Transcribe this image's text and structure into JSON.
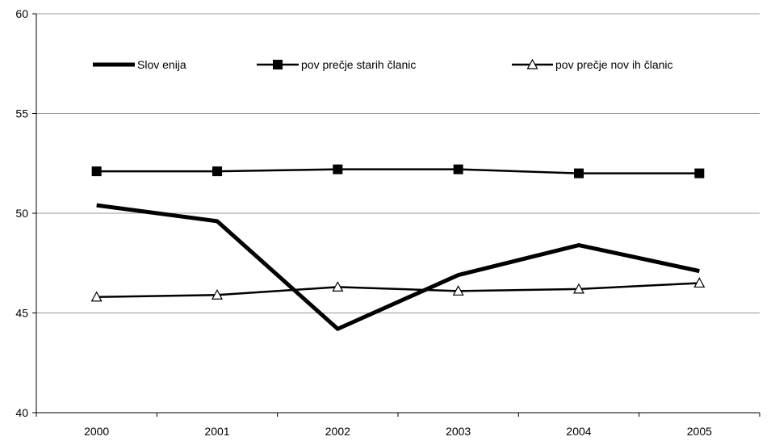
{
  "chart_data": {
    "type": "line",
    "title": "",
    "xlabel": "",
    "ylabel": "",
    "categories": [
      "2000",
      "2001",
      "2002",
      "2003",
      "2004",
      "2005"
    ],
    "ylim": [
      40,
      60
    ],
    "yticks": [
      40,
      45,
      50,
      55,
      60
    ],
    "grid": "horizontal",
    "legend": {
      "placement": "top",
      "entries": [
        "Slov enija",
        "pov prečje starih članic",
        "pov prečje nov ih članic"
      ]
    },
    "series": [
      {
        "name": "Slov enija",
        "marker": "none",
        "line": "thick",
        "values": [
          50.4,
          49.6,
          44.2,
          46.9,
          48.4,
          47.1
        ]
      },
      {
        "name": "pov prečje starih članic",
        "marker": "filled-square",
        "line": "medium",
        "values": [
          52.1,
          52.1,
          52.2,
          52.2,
          52.0,
          52.0
        ]
      },
      {
        "name": "pov prečje nov ih članic",
        "marker": "open-triangle",
        "line": "medium",
        "values": [
          45.8,
          45.9,
          46.3,
          46.1,
          46.2,
          46.5
        ]
      }
    ]
  }
}
